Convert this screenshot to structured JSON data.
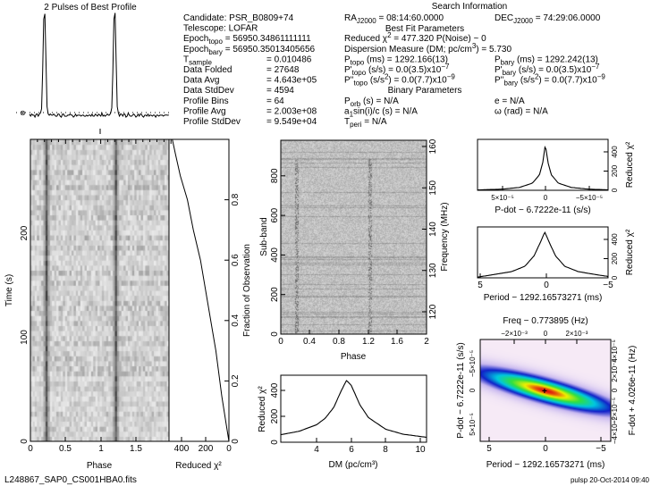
{
  "title": "2 Pulses of Best Profile",
  "info": {
    "search_title": "Search Information",
    "bestfit_title": "Best Fit Parameters",
    "binary_title": "Binary Parameters",
    "left": [
      [
        {
          "t": "Candidate:  PSR_B0809+74"
        }
      ],
      [
        {
          "t": "Telescope:  LOFAR"
        }
      ],
      [
        {
          "t": "Epoch"
        },
        {
          "t": "topo",
          "s": "sub"
        },
        {
          "t": " = 56950.34861111111"
        }
      ],
      [
        {
          "t": "Epoch"
        },
        {
          "t": "bary",
          "s": "sub"
        },
        {
          "t": " = 56950.35013405656"
        }
      ],
      [
        {
          "t": "T"
        },
        {
          "t": "sample",
          "s": "sub"
        },
        {
          "t": "= 0.010486",
          "v": 1
        }
      ],
      [
        {
          "t": "Data Folded"
        },
        {
          "t": "= 27648",
          "v": 1
        }
      ],
      [
        {
          "t": "Data Avg"
        },
        {
          "t": "= 4.643e+05",
          "v": 1
        }
      ],
      [
        {
          "t": "Data StdDev"
        },
        {
          "t": "= 4594",
          "v": 1
        }
      ],
      [
        {
          "t": "Profile Bins"
        },
        {
          "t": "= 64",
          "v": 1
        }
      ],
      [
        {
          "t": "Profile Avg"
        },
        {
          "t": "= 2.003e+08",
          "v": 1
        }
      ],
      [
        {
          "t": "Profile StdDev"
        },
        {
          "t": "= 9.549e+04",
          "v": 1
        }
      ]
    ],
    "mid": [
      [
        {
          "t": "RA"
        },
        {
          "t": "J2000",
          "s": "sub"
        },
        {
          "t": " = 08:14:60.0000"
        }
      ],
      null,
      [
        {
          "t": "Reduced χ"
        },
        {
          "t": "2",
          "s": "sup"
        },
        {
          "t": " = 477.320    P(Noise) ~ 0"
        }
      ],
      [
        {
          "t": "Dispersion Measure (DM; pc/cm"
        },
        {
          "t": "3",
          "s": "sup"
        },
        {
          "t": ") = 5.730"
        }
      ],
      [
        {
          "t": "P"
        },
        {
          "t": "topo",
          "s": "sub"
        },
        {
          "t": " (ms) =  1292.166(13)"
        }
      ],
      [
        {
          "t": "P'"
        },
        {
          "t": "topo",
          "s": "sub"
        },
        {
          "t": " (s/s) = 0.0(3.5)x10"
        },
        {
          "t": "−7",
          "s": "sup"
        }
      ],
      [
        {
          "t": "P''"
        },
        {
          "t": "topo",
          "s": "sub"
        },
        {
          "t": " (s/s"
        },
        {
          "t": "2",
          "s": "sup"
        },
        {
          "t": ") = 0.0(7.7)x10"
        },
        {
          "t": "−9",
          "s": "sup"
        }
      ],
      null,
      [
        {
          "t": "P"
        },
        {
          "t": "orb",
          "s": "sub"
        },
        {
          "t": " (s) = N/A"
        }
      ],
      [
        {
          "t": "a"
        },
        {
          "t": "1",
          "s": "sub"
        },
        {
          "t": "sin(i)/c (s) = N/A"
        }
      ],
      [
        {
          "t": "T"
        },
        {
          "t": "peri",
          "s": "sub"
        },
        {
          "t": " = N/A"
        }
      ]
    ],
    "right": [
      [
        {
          "t": "DEC"
        },
        {
          "t": "J2000",
          "s": "sub"
        },
        {
          "t": " = 74:29:06.0000"
        }
      ],
      null,
      null,
      null,
      [
        {
          "t": "P"
        },
        {
          "t": "bary",
          "s": "sub"
        },
        {
          "t": " (ms) =  1292.242(13)"
        }
      ],
      [
        {
          "t": "P'"
        },
        {
          "t": "bary",
          "s": "sub"
        },
        {
          "t": " (s/s) = 0.0(3.5)x10"
        },
        {
          "t": "−7",
          "s": "sup"
        }
      ],
      [
        {
          "t": "P''"
        },
        {
          "t": "bary",
          "s": "sub"
        },
        {
          "t": " (s/s"
        },
        {
          "t": "2",
          "s": "sup"
        },
        {
          "t": ") = 0.0(7.7)x10"
        },
        {
          "t": "−9",
          "s": "sup"
        }
      ],
      null,
      [
        {
          "t": "e = N/A"
        }
      ],
      [
        {
          "t": "ω (rad) = N/A"
        }
      ],
      null
    ]
  },
  "footer": {
    "filename": "L248867_SAP0_CS001HBA0.fits",
    "stamp": "pulsp 20-Oct-2014 09:40"
  },
  "chart_data": [
    {
      "id": "profile",
      "type": "line",
      "title": "2 Pulses of Best Profile",
      "x_range": [
        0,
        2
      ],
      "values": [
        0.04,
        0.03,
        0.05,
        0.03,
        0.04,
        0.02,
        0.04,
        0.05,
        0.03,
        0.04,
        0.06,
        0.1,
        0.45,
        0.95,
        1.0,
        0.55,
        0.12,
        0.05,
        0.03,
        0.05,
        0.04,
        0.03,
        0.05,
        0.04,
        0.02,
        0.03,
        0.05,
        0.04,
        0.03,
        0.02,
        0.04,
        0.05,
        0.03,
        0.02,
        0.03,
        0.04,
        0.03,
        0.05,
        0.04,
        0.03,
        0.02,
        0.03,
        0.04,
        0.03,
        0.04,
        0.03,
        0.04,
        0.03,
        0.03,
        0.04,
        0.03,
        0.02,
        0.04,
        0.03,
        0.03,
        0.04,
        0.03,
        0.04,
        0.03,
        0.03,
        0.04,
        0.04,
        0.03,
        0.04
      ]
    },
    {
      "id": "time-phase",
      "type": "heatmap",
      "xlabel": "Phase",
      "ylabel": "Time (s)",
      "x_range": [
        0,
        2
      ],
      "y_range": [
        0,
        290
      ],
      "xticks": [
        "0",
        "0.5",
        "1",
        "1.5"
      ],
      "yticks": [
        "0",
        "100",
        "200"
      ],
      "pulse_phase": 0.22
    },
    {
      "id": "chi2-vs-fraction",
      "type": "line",
      "xlabel": "Reduced χ²",
      "ylabel": "Fraction of Observation",
      "x_range": [
        505,
        0
      ],
      "y_range": [
        0,
        1
      ],
      "xticks": [
        "400",
        "200",
        "0"
      ],
      "yticks": [
        "0",
        "0.2",
        "0.4",
        "0.6",
        "0.8"
      ],
      "points": [
        [
          0,
          0
        ],
        [
          20,
          0.05
        ],
        [
          60,
          0.15
        ],
        [
          110,
          0.3
        ],
        [
          175,
          0.45
        ],
        [
          240,
          0.6
        ],
        [
          300,
          0.7
        ],
        [
          350,
          0.8
        ],
        [
          410,
          0.88
        ],
        [
          450,
          0.95
        ],
        [
          477,
          1
        ]
      ]
    },
    {
      "id": "subband-phase",
      "type": "heatmap",
      "xlabel": "Phase",
      "ylabel": "Sub-band",
      "y2label": "Frequency (MHz)",
      "x_range": [
        0,
        2
      ],
      "y_range": [
        0,
        980
      ],
      "y2_range": [
        114.6,
        161.5
      ],
      "xticks": [
        "0",
        "0.4",
        "0.8",
        "1.2",
        "1.6",
        "2"
      ],
      "yticks": [
        "0",
        "200",
        "400",
        "600",
        "800"
      ],
      "y2ticks": [
        "120",
        "130",
        "140",
        "150",
        "160"
      ]
    },
    {
      "id": "dm-curve",
      "type": "line",
      "xlabel": "DM (pc/cm³)",
      "ylabel": "Reduced χ²",
      "x_range": [
        1.93,
        10.36
      ],
      "y_range": [
        0,
        517
      ],
      "xticks": [
        "4",
        "6",
        "8",
        "10"
      ],
      "yticks": [
        "0",
        "200",
        "400"
      ],
      "points": [
        [
          1.93,
          58
        ],
        [
          3,
          85
        ],
        [
          4,
          135
        ],
        [
          4.5,
          185
        ],
        [
          5,
          270
        ],
        [
          5.4,
          390
        ],
        [
          5.73,
          477
        ],
        [
          6,
          440
        ],
        [
          6.5,
          290
        ],
        [
          7,
          190
        ],
        [
          8,
          100
        ],
        [
          9,
          62
        ],
        [
          10.36,
          38
        ]
      ]
    },
    {
      "id": "pdot-curve",
      "type": "line",
      "xlabel": "P-dot − 6.7222e-11 (s/s)",
      "ylabel": "Reduced χ²",
      "x_range": [
        7.9e-05,
        -7.3e-05
      ],
      "y_range": [
        0,
        530
      ],
      "xticks": [
        "5×10⁻⁵",
        "0",
        "−5×10⁻⁵"
      ],
      "yticks": [
        "0",
        "200",
        "400"
      ],
      "points": [
        [
          7.9e-05,
          4
        ],
        [
          5e-05,
          12
        ],
        [
          3e-05,
          30
        ],
        [
          1.5e-05,
          75
        ],
        [
          7e-06,
          160
        ],
        [
          3e-06,
          290
        ],
        [
          0,
          477
        ],
        [
          -3e-06,
          290
        ],
        [
          -7e-06,
          160
        ],
        [
          -1.5e-05,
          75
        ],
        [
          -3e-05,
          30
        ],
        [
          -5e-05,
          12
        ],
        [
          -7.3e-05,
          5
        ]
      ]
    },
    {
      "id": "period-curve",
      "type": "line",
      "xlabel": "Period − 1292.16573271 (ms)",
      "ylabel": "Reduced χ²",
      "x_range": [
        5.05,
        -4.75
      ],
      "y_range": [
        0,
        530
      ],
      "xticks": [
        "5",
        "0",
        "−5"
      ],
      "yticks": [
        "0",
        "200",
        "400"
      ],
      "points": [
        [
          5.05,
          8
        ],
        [
          4,
          30
        ],
        [
          2.5,
          65
        ],
        [
          1.5,
          120
        ],
        [
          0.8,
          230
        ],
        [
          0.3,
          380
        ],
        [
          0,
          477
        ],
        [
          -0.3,
          380
        ],
        [
          -0.8,
          230
        ],
        [
          -1.5,
          120
        ],
        [
          -2.5,
          65
        ],
        [
          -4,
          30
        ],
        [
          -4.75,
          15
        ]
      ]
    },
    {
      "id": "p-pdot-plane",
      "type": "heatmap",
      "xlabel": "Period − 1292.16573271 (ms)",
      "ylabel": "P-dot − 6.7222e-11 (s/s)",
      "x2label": "Freq − 0.773895 (Hz)",
      "y2label": "F-dot + 4.026e-11 (Hz)",
      "xticks": [
        "5",
        "0",
        "−5"
      ],
      "yticks": [
        "−5×10⁻⁵",
        "0",
        "5×10⁻⁵"
      ],
      "x2ticks": [
        "−2×10⁻³",
        "0",
        "2×10⁻³"
      ],
      "y2ticks": [
        "−4×10⁻⁵",
        "−2×10⁻⁵",
        "0",
        "2×10⁻⁵",
        "4×10⁻⁵"
      ],
      "colormap": [
        "#f6eaf6",
        "#c8b8f0",
        "#1020c8",
        "#00c8e0",
        "#30e040",
        "#f0f000",
        "#e01010"
      ]
    }
  ]
}
